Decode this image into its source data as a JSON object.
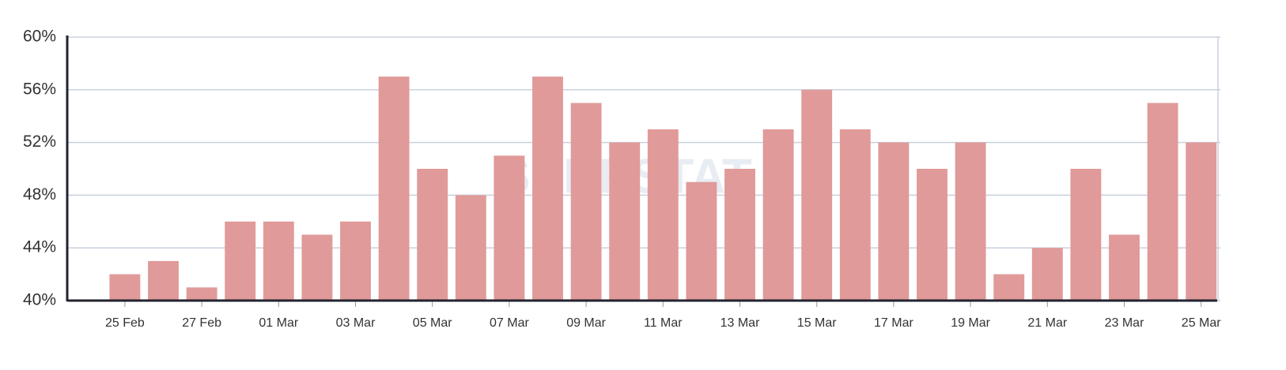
{
  "chart_data": {
    "type": "bar",
    "watermark": "SERPSTAT",
    "categories": [
      null,
      "25 Feb",
      null,
      "27 Feb",
      null,
      "01 Mar",
      null,
      "03 Mar",
      null,
      "05 Mar",
      null,
      "07 Mar",
      null,
      "09 Mar",
      null,
      "11 Mar",
      null,
      "13 Mar",
      null,
      "15 Mar",
      null,
      "17 Mar",
      null,
      "19 Mar",
      null,
      "21 Mar",
      null,
      "23 Mar",
      null,
      "25 Mar"
    ],
    "values": [
      null,
      42,
      43,
      41,
      46,
      46,
      45,
      46,
      57,
      50,
      48,
      51,
      57,
      55,
      52,
      53,
      49,
      50,
      53,
      56,
      53,
      52,
      50,
      52,
      42,
      44,
      50,
      45,
      55,
      52
    ],
    "color": "#e09a99",
    "ylim": [
      40,
      60
    ],
    "yticks": [
      {
        "value": 40,
        "label": "40%"
      },
      {
        "value": 44,
        "label": "44%"
      },
      {
        "value": 48,
        "label": "48%"
      },
      {
        "value": 52,
        "label": "52%"
      },
      {
        "value": 56,
        "label": "56%"
      },
      {
        "value": 60,
        "label": "60%"
      }
    ],
    "grid": true
  }
}
